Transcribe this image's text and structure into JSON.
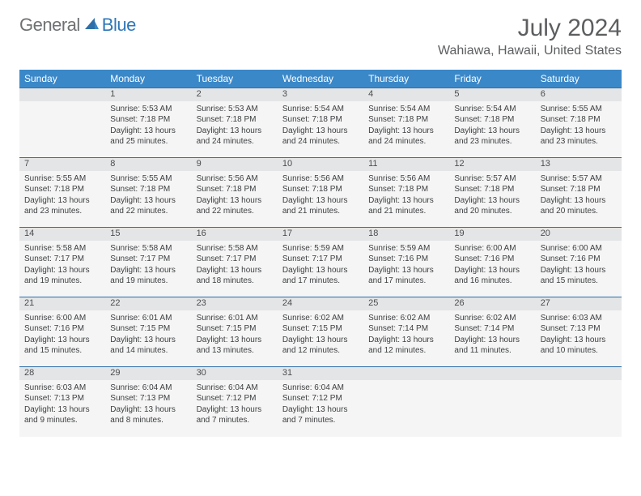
{
  "logo": {
    "general": "General",
    "blue": "Blue"
  },
  "title": "July 2024",
  "location": "Wahiawa, Hawaii, United States",
  "colors": {
    "header_bg": "#3b88c8",
    "header_text": "#ffffff",
    "daynum_bg": "#e3e5e6",
    "cell_bg": "#f5f5f5",
    "row_border": "#2f6fa8",
    "title_color": "#5c5e60",
    "logo_gray": "#6f7173",
    "logo_blue": "#2f77b8"
  },
  "day_headers": [
    "Sunday",
    "Monday",
    "Tuesday",
    "Wednesday",
    "Thursday",
    "Friday",
    "Saturday"
  ],
  "weeks": [
    [
      {
        "n": "",
        "s": "",
        "u": "",
        "d": ""
      },
      {
        "n": "1",
        "s": "Sunrise: 5:53 AM",
        "u": "Sunset: 7:18 PM",
        "d": "Daylight: 13 hours and 25 minutes."
      },
      {
        "n": "2",
        "s": "Sunrise: 5:53 AM",
        "u": "Sunset: 7:18 PM",
        "d": "Daylight: 13 hours and 24 minutes."
      },
      {
        "n": "3",
        "s": "Sunrise: 5:54 AM",
        "u": "Sunset: 7:18 PM",
        "d": "Daylight: 13 hours and 24 minutes."
      },
      {
        "n": "4",
        "s": "Sunrise: 5:54 AM",
        "u": "Sunset: 7:18 PM",
        "d": "Daylight: 13 hours and 24 minutes."
      },
      {
        "n": "5",
        "s": "Sunrise: 5:54 AM",
        "u": "Sunset: 7:18 PM",
        "d": "Daylight: 13 hours and 23 minutes."
      },
      {
        "n": "6",
        "s": "Sunrise: 5:55 AM",
        "u": "Sunset: 7:18 PM",
        "d": "Daylight: 13 hours and 23 minutes."
      }
    ],
    [
      {
        "n": "7",
        "s": "Sunrise: 5:55 AM",
        "u": "Sunset: 7:18 PM",
        "d": "Daylight: 13 hours and 23 minutes."
      },
      {
        "n": "8",
        "s": "Sunrise: 5:55 AM",
        "u": "Sunset: 7:18 PM",
        "d": "Daylight: 13 hours and 22 minutes."
      },
      {
        "n": "9",
        "s": "Sunrise: 5:56 AM",
        "u": "Sunset: 7:18 PM",
        "d": "Daylight: 13 hours and 22 minutes."
      },
      {
        "n": "10",
        "s": "Sunrise: 5:56 AM",
        "u": "Sunset: 7:18 PM",
        "d": "Daylight: 13 hours and 21 minutes."
      },
      {
        "n": "11",
        "s": "Sunrise: 5:56 AM",
        "u": "Sunset: 7:18 PM",
        "d": "Daylight: 13 hours and 21 minutes."
      },
      {
        "n": "12",
        "s": "Sunrise: 5:57 AM",
        "u": "Sunset: 7:18 PM",
        "d": "Daylight: 13 hours and 20 minutes."
      },
      {
        "n": "13",
        "s": "Sunrise: 5:57 AM",
        "u": "Sunset: 7:18 PM",
        "d": "Daylight: 13 hours and 20 minutes."
      }
    ],
    [
      {
        "n": "14",
        "s": "Sunrise: 5:58 AM",
        "u": "Sunset: 7:17 PM",
        "d": "Daylight: 13 hours and 19 minutes."
      },
      {
        "n": "15",
        "s": "Sunrise: 5:58 AM",
        "u": "Sunset: 7:17 PM",
        "d": "Daylight: 13 hours and 19 minutes."
      },
      {
        "n": "16",
        "s": "Sunrise: 5:58 AM",
        "u": "Sunset: 7:17 PM",
        "d": "Daylight: 13 hours and 18 minutes."
      },
      {
        "n": "17",
        "s": "Sunrise: 5:59 AM",
        "u": "Sunset: 7:17 PM",
        "d": "Daylight: 13 hours and 17 minutes."
      },
      {
        "n": "18",
        "s": "Sunrise: 5:59 AM",
        "u": "Sunset: 7:16 PM",
        "d": "Daylight: 13 hours and 17 minutes."
      },
      {
        "n": "19",
        "s": "Sunrise: 6:00 AM",
        "u": "Sunset: 7:16 PM",
        "d": "Daylight: 13 hours and 16 minutes."
      },
      {
        "n": "20",
        "s": "Sunrise: 6:00 AM",
        "u": "Sunset: 7:16 PM",
        "d": "Daylight: 13 hours and 15 minutes."
      }
    ],
    [
      {
        "n": "21",
        "s": "Sunrise: 6:00 AM",
        "u": "Sunset: 7:16 PM",
        "d": "Daylight: 13 hours and 15 minutes."
      },
      {
        "n": "22",
        "s": "Sunrise: 6:01 AM",
        "u": "Sunset: 7:15 PM",
        "d": "Daylight: 13 hours and 14 minutes."
      },
      {
        "n": "23",
        "s": "Sunrise: 6:01 AM",
        "u": "Sunset: 7:15 PM",
        "d": "Daylight: 13 hours and 13 minutes."
      },
      {
        "n": "24",
        "s": "Sunrise: 6:02 AM",
        "u": "Sunset: 7:15 PM",
        "d": "Daylight: 13 hours and 12 minutes."
      },
      {
        "n": "25",
        "s": "Sunrise: 6:02 AM",
        "u": "Sunset: 7:14 PM",
        "d": "Daylight: 13 hours and 12 minutes."
      },
      {
        "n": "26",
        "s": "Sunrise: 6:02 AM",
        "u": "Sunset: 7:14 PM",
        "d": "Daylight: 13 hours and 11 minutes."
      },
      {
        "n": "27",
        "s": "Sunrise: 6:03 AM",
        "u": "Sunset: 7:13 PM",
        "d": "Daylight: 13 hours and 10 minutes."
      }
    ],
    [
      {
        "n": "28",
        "s": "Sunrise: 6:03 AM",
        "u": "Sunset: 7:13 PM",
        "d": "Daylight: 13 hours and 9 minutes."
      },
      {
        "n": "29",
        "s": "Sunrise: 6:04 AM",
        "u": "Sunset: 7:13 PM",
        "d": "Daylight: 13 hours and 8 minutes."
      },
      {
        "n": "30",
        "s": "Sunrise: 6:04 AM",
        "u": "Sunset: 7:12 PM",
        "d": "Daylight: 13 hours and 7 minutes."
      },
      {
        "n": "31",
        "s": "Sunrise: 6:04 AM",
        "u": "Sunset: 7:12 PM",
        "d": "Daylight: 13 hours and 7 minutes."
      },
      {
        "n": "",
        "s": "",
        "u": "",
        "d": ""
      },
      {
        "n": "",
        "s": "",
        "u": "",
        "d": ""
      },
      {
        "n": "",
        "s": "",
        "u": "",
        "d": ""
      }
    ]
  ]
}
